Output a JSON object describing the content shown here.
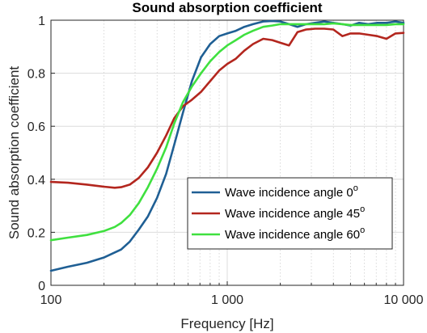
{
  "chart_data": {
    "type": "line",
    "title": "Sound absorption coefficient",
    "xlabel": "Frequency [Hz]",
    "ylabel": "Sound absorption coefficient",
    "xscale": "log",
    "xlim": [
      100,
      10000
    ],
    "ylim": [
      0,
      1
    ],
    "xticks": [
      100,
      1000,
      10000
    ],
    "xtick_labels": [
      "100",
      "1 000",
      "10 000"
    ],
    "yticks": [
      0,
      0.2,
      0.4,
      0.6,
      0.8,
      1
    ],
    "ytick_labels": [
      "0",
      "0.2",
      "0.4",
      "0.6",
      "0.8",
      "1"
    ],
    "grid": true,
    "legend_position": "lower-right",
    "series": [
      {
        "name": "Wave incidence angle 0",
        "superscript": "o",
        "color": "#1f5f94",
        "x": [
          100,
          125,
          160,
          200,
          250,
          280,
          315,
          355,
          400,
          450,
          500,
          560,
          630,
          710,
          800,
          900,
          1000,
          1120,
          1250,
          1400,
          1600,
          1800,
          2000,
          2240,
          2500,
          2800,
          3150,
          3550,
          4000,
          4500,
          5000,
          5600,
          6300,
          7100,
          8000,
          9000,
          10000
        ],
        "y": [
          0.055,
          0.07,
          0.085,
          0.105,
          0.135,
          0.165,
          0.21,
          0.26,
          0.33,
          0.42,
          0.53,
          0.65,
          0.77,
          0.86,
          0.91,
          0.94,
          0.95,
          0.96,
          0.975,
          0.985,
          0.995,
          0.997,
          0.995,
          0.985,
          0.975,
          0.985,
          0.99,
          0.995,
          0.99,
          0.985,
          0.98,
          0.99,
          0.985,
          0.99,
          0.99,
          0.995,
          0.99
        ]
      },
      {
        "name": "Wave incidence angle 45",
        "superscript": "o",
        "color": "#b3261e",
        "x": [
          100,
          125,
          160,
          200,
          230,
          250,
          280,
          315,
          355,
          400,
          450,
          500,
          560,
          630,
          710,
          800,
          900,
          1000,
          1120,
          1250,
          1400,
          1600,
          1800,
          2000,
          2240,
          2500,
          2800,
          3150,
          3550,
          4000,
          4500,
          5000,
          5600,
          6300,
          7100,
          8000,
          9000,
          10000
        ],
        "y": [
          0.39,
          0.387,
          0.38,
          0.372,
          0.368,
          0.37,
          0.38,
          0.405,
          0.445,
          0.5,
          0.565,
          0.63,
          0.675,
          0.7,
          0.73,
          0.77,
          0.81,
          0.835,
          0.855,
          0.885,
          0.91,
          0.93,
          0.925,
          0.915,
          0.905,
          0.955,
          0.965,
          0.968,
          0.968,
          0.965,
          0.94,
          0.95,
          0.95,
          0.945,
          0.94,
          0.93,
          0.95,
          0.952
        ]
      },
      {
        "name": "Wave incidence angle 60",
        "superscript": "o",
        "color": "#3fe03f",
        "x": [
          100,
          125,
          160,
          200,
          230,
          250,
          280,
          315,
          355,
          400,
          450,
          500,
          560,
          630,
          710,
          800,
          900,
          1000,
          1120,
          1250,
          1400,
          1600,
          1800,
          2000,
          2240,
          2500,
          2800,
          3150,
          3550,
          4000,
          4500,
          5000,
          5600,
          6300,
          7100,
          8000,
          9000,
          10000
        ],
        "y": [
          0.17,
          0.18,
          0.19,
          0.205,
          0.22,
          0.235,
          0.265,
          0.31,
          0.37,
          0.44,
          0.52,
          0.61,
          0.69,
          0.75,
          0.8,
          0.845,
          0.88,
          0.905,
          0.925,
          0.945,
          0.96,
          0.975,
          0.98,
          0.985,
          0.985,
          0.985,
          0.985,
          0.985,
          0.985,
          0.988,
          0.985,
          0.982,
          0.982,
          0.982,
          0.982,
          0.982,
          0.985,
          0.985
        ]
      }
    ]
  }
}
